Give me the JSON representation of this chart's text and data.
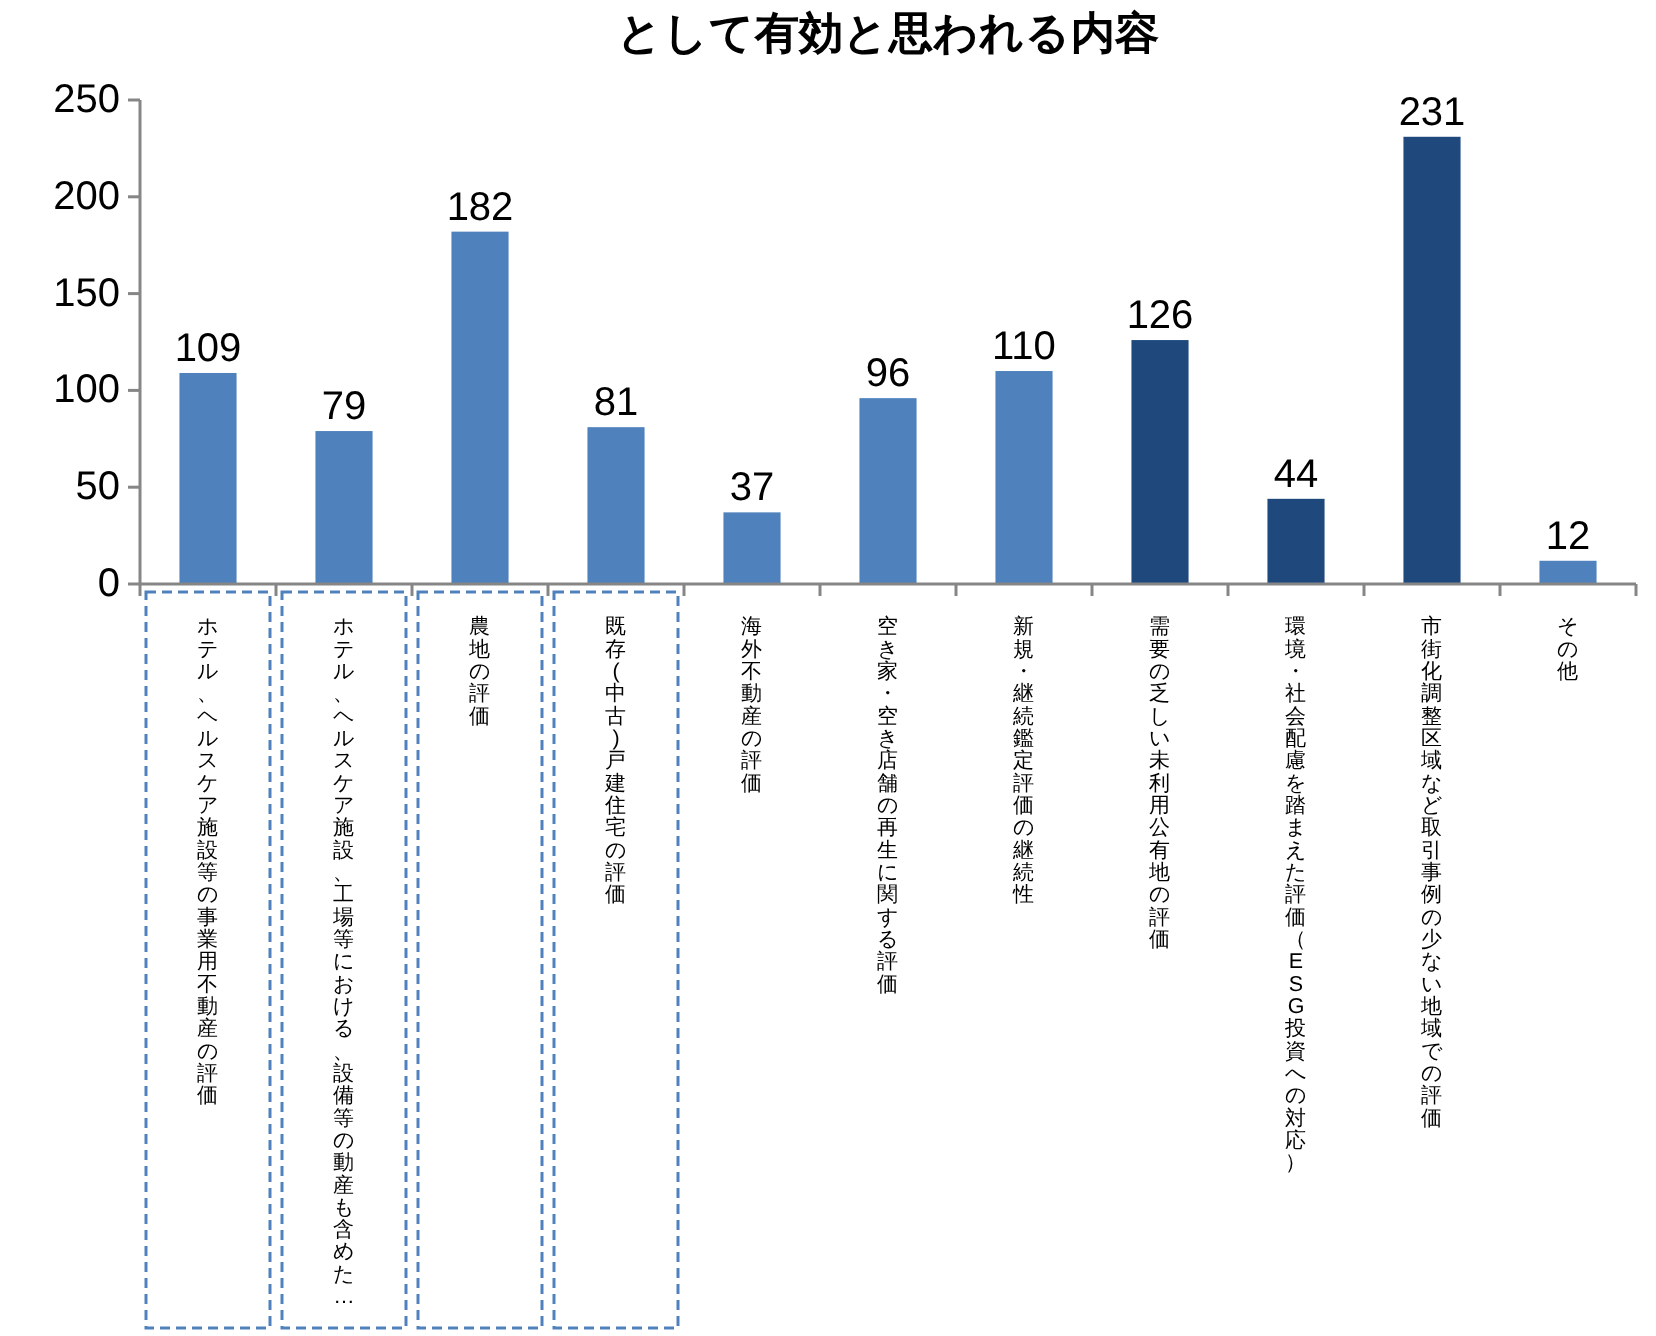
{
  "chart_data": {
    "type": "bar",
    "title": "として有効と思われる内容",
    "categories": [
      "ホテル、ヘルスケア施設等の事業用不動産の評価",
      "ホテル、ヘルスケア施設、工場等における、設備等の動産も含めた…",
      "農地の評価",
      "既存(中古)戸建住宅の評価",
      "海外不動産の評価",
      "空き家・空き店舗の再生に関する評価",
      "新規・継続鑑定評価の継続性",
      "需要の乏しい未利用公有地の評価",
      "環境・社会配慮を踏まえた評価（ESG投資への対応）",
      "市街化調整区域など取引事例の少ない地域での評価",
      "その他"
    ],
    "values": [
      109,
      79,
      182,
      81,
      37,
      96,
      110,
      126,
      44,
      231,
      12
    ],
    "colors": [
      "#4f81bd",
      "#4f81bd",
      "#4f81bd",
      "#4f81bd",
      "#4f81bd",
      "#4f81bd",
      "#4f81bd",
      "#1f497d",
      "#1f497d",
      "#1f497d",
      "#4f81bd"
    ],
    "ylim": [
      0,
      250
    ],
    "yticks": [
      0,
      50,
      100,
      150,
      200,
      250
    ],
    "data_labels": true,
    "grid": false
  }
}
